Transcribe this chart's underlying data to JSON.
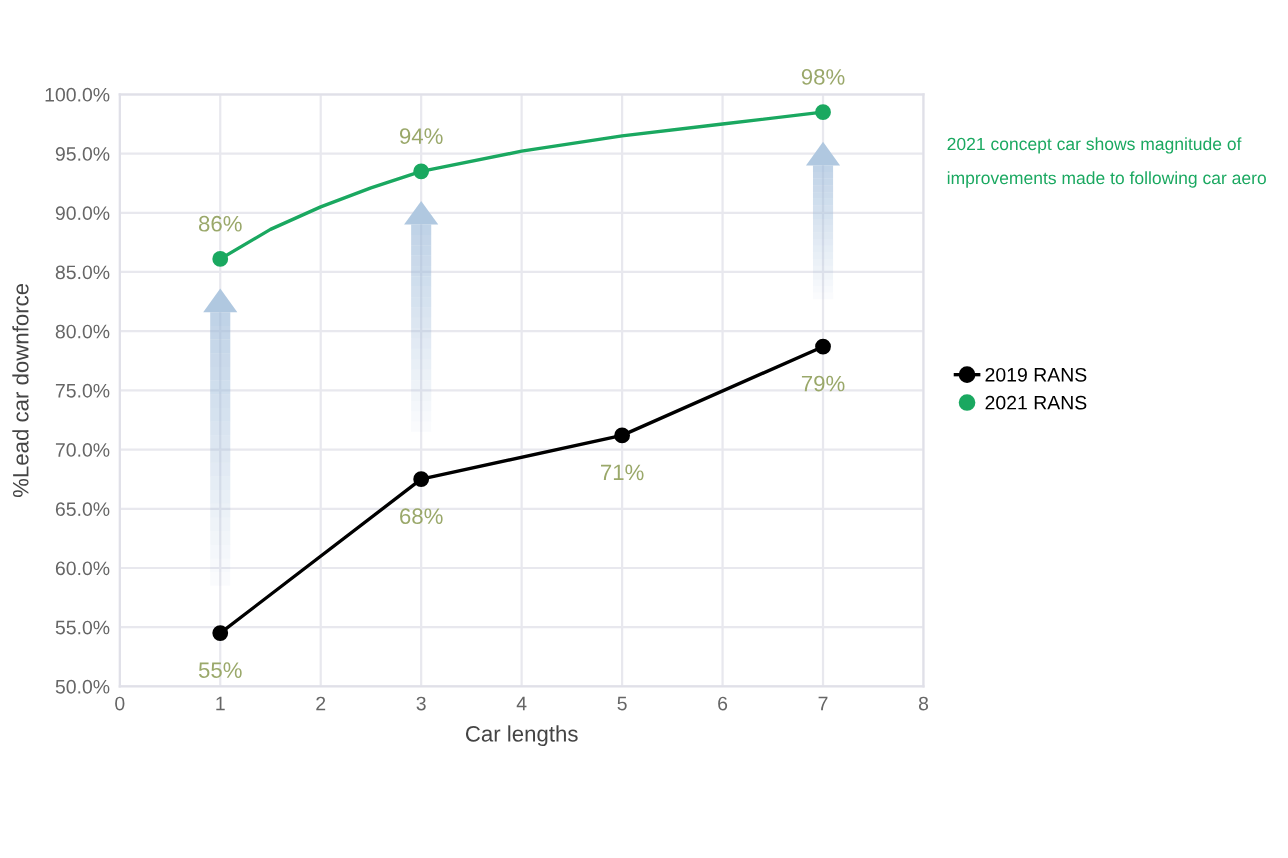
{
  "chart_data": {
    "type": "line",
    "xlabel": "Car lengths",
    "ylabel": "%Lead car downforce",
    "xlim": [
      0,
      8
    ],
    "xticks": [
      0,
      1,
      2,
      3,
      4,
      5,
      6,
      7,
      8
    ],
    "ylim": [
      50,
      100
    ],
    "yticks": [
      {
        "value": 50,
        "label": "50.0%"
      },
      {
        "value": 55,
        "label": "55.0%"
      },
      {
        "value": 60,
        "label": "60.0%"
      },
      {
        "value": 65,
        "label": "65.0%"
      },
      {
        "value": 70,
        "label": "70.0%"
      },
      {
        "value": 75,
        "label": "75.0%"
      },
      {
        "value": 80,
        "label": "80.0%"
      },
      {
        "value": 85,
        "label": "85.0%"
      },
      {
        "value": 90,
        "label": "90.0%"
      },
      {
        "value": 95,
        "label": "95.0%"
      },
      {
        "value": 100,
        "label": "100.0%"
      }
    ],
    "grid": true,
    "legend": "right",
    "marker": "circle",
    "series": [
      {
        "name": "2019 RANS",
        "color": "#000000",
        "x": [
          1,
          3,
          5,
          7
        ],
        "values": [
          54.5,
          67.5,
          71.2,
          78.7
        ],
        "value_labels": [
          "55%",
          "68%",
          "71%",
          "79%"
        ]
      },
      {
        "name": "2021 RANS",
        "type": "scatter",
        "color": "#1aa860",
        "x": [
          1,
          3,
          7
        ],
        "values": [
          86.1,
          93.5,
          98.5
        ],
        "value_labels": [
          "86%",
          "94%",
          "98%"
        ]
      },
      {
        "type": "line",
        "marker": "none",
        "color": "#1aa860",
        "x": [
          1,
          1.5,
          2,
          2.5,
          3,
          4,
          5,
          6,
          7
        ],
        "values": [
          86.1,
          88.6,
          90.5,
          92.1,
          93.5,
          95.2,
          96.5,
          97.5,
          98.5
        ]
      }
    ],
    "annotations": [
      "2021 concept car shows magnitude of\nimprovements made to following car aero"
    ]
  }
}
